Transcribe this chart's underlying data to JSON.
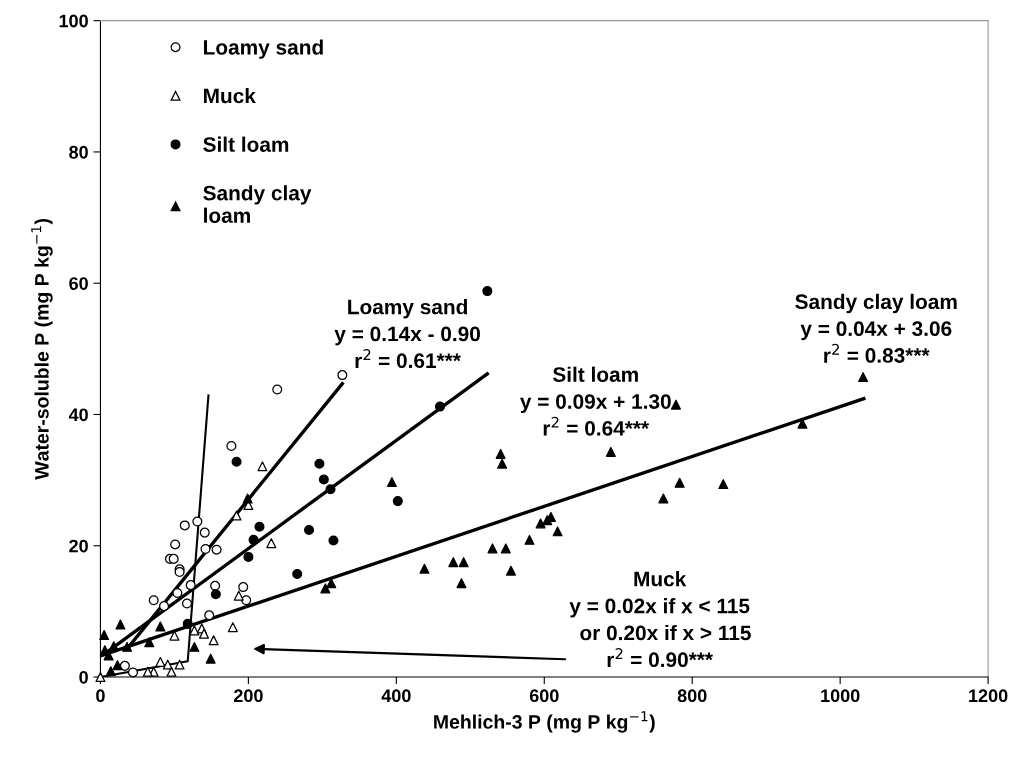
{
  "chart_data": {
    "type": "scatter",
    "xlabel": "Mehlich-3 P (mg P kg$^{−1}$)",
    "ylabel": "Water-soluble P (mg P kg$^{−1}$)",
    "xlim": [
      0,
      1200
    ],
    "ylim": [
      0,
      100
    ],
    "xticks": [
      0,
      200,
      400,
      600,
      800,
      1000,
      1200
    ],
    "yticks": [
      0,
      20,
      40,
      60,
      80,
      100
    ],
    "grid": false,
    "legend": "top left",
    "series": [
      {
        "name": "Loamy sand",
        "marker": "circle",
        "color": "#ffffff",
        "x": [
          239,
          177,
          114,
          131,
          141,
          101,
          142,
          157,
          94,
          99,
          107,
          107,
          122,
          104,
          72,
          86,
          117,
          155,
          193,
          197,
          147,
          33,
          44,
          327
        ],
        "values": [
          43.8,
          35.2,
          23.1,
          23.7,
          22.0,
          20.2,
          19.5,
          19.4,
          18.0,
          18.0,
          16.4,
          16.0,
          14.0,
          12.8,
          11.7,
          10.8,
          11.2,
          13.9,
          13.7,
          11.7,
          9.4,
          1.7,
          0.7,
          46.0
        ]
      },
      {
        "name": "Muck",
        "marker": "triangle",
        "color": "#ffffff",
        "x": [
          219,
          200,
          184,
          231,
          187,
          179,
          100,
          127,
          137,
          140,
          153,
          107,
          81,
          91,
          96,
          72,
          64,
          0
        ],
        "values": [
          32.1,
          26.2,
          24.6,
          20.4,
          12.4,
          7.6,
          6.3,
          7.1,
          7.4,
          6.6,
          5.6,
          1.9,
          2.3,
          1.9,
          0.8,
          0.8,
          0.8,
          0
        ]
      },
      {
        "name": "Silt loam",
        "marker": "circle",
        "color": "#000000",
        "x": [
          523,
          459,
          184,
          296,
          302,
          311,
          402,
          215,
          207,
          282,
          200,
          315,
          266,
          156,
          118
        ],
        "values": [
          58.8,
          41.2,
          32.8,
          32.5,
          30.1,
          28.6,
          26.8,
          22.9,
          20.9,
          22.4,
          18.3,
          20.8,
          15.7,
          12.6,
          8.1
        ]
      },
      {
        "name": "Sandy clay\nloam",
        "marker": "triangle",
        "color": "#000000",
        "x": [
          5,
          27,
          6,
          11,
          18,
          36,
          66,
          81,
          23,
          14,
          199,
          127,
          149,
          394,
          541,
          543,
          595,
          604,
          609,
          618,
          580,
          530,
          548,
          477,
          491,
          438,
          555,
          488,
          304,
          312,
          690,
          778,
          761,
          783,
          842,
          949,
          1031
        ],
        "values": [
          6.4,
          8.0,
          4.1,
          3.3,
          4.7,
          4.6,
          5.3,
          7.7,
          1.8,
          0.9,
          27.2,
          4.6,
          2.8,
          29.7,
          34.0,
          32.5,
          23.4,
          23.9,
          24.4,
          22.2,
          20.9,
          19.6,
          19.6,
          17.5,
          17.5,
          16.5,
          16.2,
          14.3,
          13.5,
          14.3,
          34.3,
          41.5,
          27.2,
          29.6,
          29.4,
          38.6,
          45.7
        ]
      },
      {
        "type": "line",
        "color": "#000000",
        "x": [
          36,
          327
        ],
        "values": [
          4.3,
          44.7
        ]
      },
      {
        "type": "line",
        "color": "#000000",
        "x": [
          5,
          523
        ],
        "values": [
          3.5,
          46.2
        ]
      },
      {
        "type": "line",
        "color": "#000000",
        "x": [
          2,
          1032
        ],
        "values": [
          3.3,
          42.4
        ]
      },
      {
        "type": "line",
        "color": "#000000",
        "x": [
          0,
          118,
          146
        ],
        "values": [
          0,
          2.4,
          42.9
        ]
      }
    ],
    "annotations": [
      "Loamy sand\ny = 0.14x - 0.90\nr$^{2}$ = 0.61***",
      "Silt loam\ny = 0.09x + 1.30\nr$^{2}$ = 0.64***",
      "Sandy clay loam\ny = 0.04x + 3.06\nr$^{2}$ = 0.83***",
      "Muck\ny = 0.02x if x < 115\n  or 0.20x if x > 115\nr$^{2}$ = 0.90***"
    ]
  }
}
